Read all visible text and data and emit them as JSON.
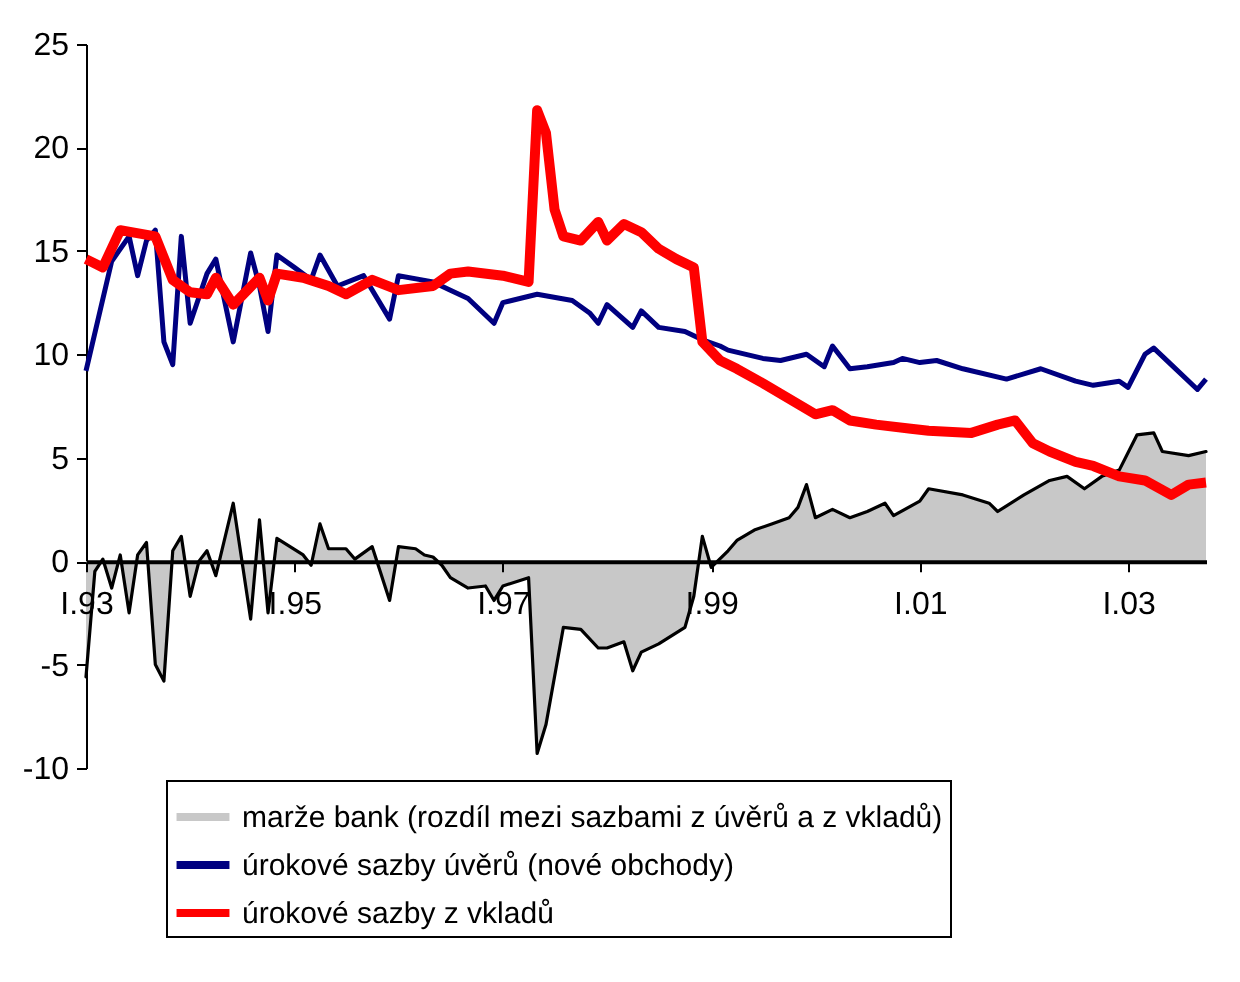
{
  "chart_data": {
    "type": "line",
    "xlim": [
      "1993-01",
      "2003-10"
    ],
    "xticks": [
      {
        "value": "1993-01",
        "label": "I.93"
      },
      {
        "value": "1995-01",
        "label": "I.95"
      },
      {
        "value": "1997-01",
        "label": "I.97"
      },
      {
        "value": "1999-01",
        "label": "I.99"
      },
      {
        "value": "2001-01",
        "label": "I.01"
      },
      {
        "value": "2003-01",
        "label": "I.03"
      }
    ],
    "ylim": [
      -10,
      25
    ],
    "yticks": [
      -10,
      -5,
      0,
      5,
      10,
      15,
      20,
      25
    ],
    "grid": false,
    "legend": "bottom",
    "series": [
      {
        "name": "marže bank (rozdíl mezi sazbami z úvěrů a z vkladů)",
        "type": "area",
        "color": "#c8c8c8",
        "x": [
          "1993-01",
          "1993-02",
          "1993-03",
          "1993-04",
          "1993-05",
          "1993-06",
          "1993-07",
          "1993-08",
          "1993-09",
          "1993-10",
          "1993-11",
          "1993-12",
          "1994-01",
          "1994-02",
          "1994-03",
          "1994-04",
          "1994-06",
          "1994-08",
          "1994-09",
          "1994-10",
          "1994-11",
          "1995-02",
          "1995-03",
          "1995-04",
          "1995-05",
          "1995-07",
          "1995-08",
          "1995-10",
          "1995-12",
          "1996-01",
          "1996-03",
          "1996-04",
          "1996-05",
          "1996-06",
          "1996-07",
          "1996-09",
          "1996-11",
          "1996-12",
          "1997-01",
          "1997-04",
          "1997-05",
          "1997-06",
          "1997-08",
          "1997-10",
          "1997-12",
          "1998-01",
          "1998-03",
          "1998-04",
          "1998-05",
          "1998-07",
          "1998-10",
          "1998-11",
          "1998-12",
          "1999-01",
          "1999-03",
          "1999-04",
          "1999-06",
          "1999-08",
          "1999-10",
          "1999-11",
          "1999-12",
          "2000-01",
          "2000-03",
          "2000-05",
          "2000-07",
          "2000-09",
          "2000-10",
          "2001-01",
          "2001-02",
          "2001-06",
          "2001-09",
          "2001-10",
          "2002-01",
          "2002-04",
          "2002-06",
          "2002-08",
          "2002-10",
          "2002-12",
          "2003-02",
          "2003-04",
          "2003-05",
          "2003-08",
          "2003-10"
        ],
        "values": [
          -5.6,
          -0.5,
          0.1,
          -1.3,
          0.3,
          -2.5,
          0.3,
          0.9,
          -5.0,
          -5.8,
          0.5,
          1.2,
          -1.7,
          0,
          0.5,
          -0.7,
          2.8,
          -2.8,
          2.0,
          -2.5,
          1.1,
          0.3,
          -0.2,
          1.8,
          0.6,
          0.6,
          0.1,
          0.7,
          -1.9,
          0.7,
          0.6,
          0.3,
          0.2,
          -0.2,
          -0.8,
          -1.3,
          -1.2,
          -1.9,
          -1.2,
          -0.8,
          -9.3,
          -7.9,
          -3.2,
          -3.3,
          -4.2,
          -4.2,
          -3.9,
          -5.3,
          -4.4,
          -4.0,
          -3.2,
          -1.7,
          1.2,
          -0.3,
          0.5,
          1.0,
          1.5,
          1.8,
          2.1,
          2.6,
          3.7,
          2.1,
          2.5,
          2.1,
          2.4,
          2.8,
          2.2,
          2.9,
          3.5,
          3.2,
          2.8,
          2.4,
          3.2,
          3.9,
          4.1,
          3.5,
          4.1,
          4.4,
          6.1,
          6.2,
          5.3,
          5.1,
          5.3
        ]
      },
      {
        "name": "úrokové sazby úvěrů (nové obchody)",
        "type": "line",
        "color": "#000080",
        "x": [
          "1993-01",
          "1993-04",
          "1993-06",
          "1993-07",
          "1993-08",
          "1993-09",
          "1993-10",
          "1993-11",
          "1993-12",
          "1994-01",
          "1994-03",
          "1994-04",
          "1994-06",
          "1994-08",
          "1994-09",
          "1994-10",
          "1994-11",
          "1995-01",
          "1995-03",
          "1995-04",
          "1995-06",
          "1995-09",
          "1995-12",
          "1996-01",
          "1996-05",
          "1996-07",
          "1996-09",
          "1996-12",
          "1997-01",
          "1997-05",
          "1997-09",
          "1997-11",
          "1997-12",
          "1998-01",
          "1998-04",
          "1998-05",
          "1998-07",
          "1998-10",
          "1998-12",
          "1999-02",
          "1999-03",
          "1999-07",
          "1999-09",
          "1999-12",
          "2000-02",
          "2000-03",
          "2000-05",
          "2000-07",
          "2000-10",
          "2000-11",
          "2001-01",
          "2001-03",
          "2001-06",
          "2001-11",
          "2002-03",
          "2002-07",
          "2002-09",
          "2002-12",
          "2003-01",
          "2003-03",
          "2003-04",
          "2003-06",
          "2003-09",
          "2003-10"
        ],
        "values": [
          9.2,
          14.5,
          15.7,
          13.8,
          15.5,
          16.0,
          10.6,
          9.5,
          15.7,
          11.5,
          13.9,
          14.6,
          10.6,
          14.9,
          13.3,
          11.1,
          14.8,
          14.2,
          13.6,
          14.8,
          13.3,
          13.8,
          11.7,
          13.8,
          13.5,
          13.1,
          12.7,
          11.5,
          12.5,
          12.9,
          12.6,
          12.0,
          11.5,
          12.4,
          11.3,
          12.1,
          11.3,
          11.1,
          10.7,
          10.4,
          10.2,
          9.8,
          9.7,
          10.0,
          9.4,
          10.4,
          9.3,
          9.4,
          9.6,
          9.8,
          9.6,
          9.7,
          9.3,
          8.8,
          9.3,
          8.7,
          8.5,
          8.7,
          8.4,
          10.0,
          10.3,
          9.5,
          8.3,
          8.8
        ]
      },
      {
        "name": "úrokové sazby z vkladů",
        "type": "line",
        "color": "#ff0000",
        "x": [
          "1993-01",
          "1993-03",
          "1993-05",
          "1993-09",
          "1993-11",
          "1994-01",
          "1994-03",
          "1994-04",
          "1994-06",
          "1994-09",
          "1994-10",
          "1994-11",
          "1995-02",
          "1995-05",
          "1995-07",
          "1995-10",
          "1996-01",
          "1996-05",
          "1996-07",
          "1996-09",
          "1997-01",
          "1997-04",
          "1997-05",
          "1997-06",
          "1997-07",
          "1997-08",
          "1997-10",
          "1997-12",
          "1998-01",
          "1998-03",
          "1998-05",
          "1998-07",
          "1998-09",
          "1998-11",
          "1998-12",
          "1999-02",
          "1999-04",
          "1999-07",
          "2000-01",
          "2000-03",
          "2000-05",
          "2000-08",
          "2000-12",
          "2001-02",
          "2001-07",
          "2001-10",
          "2001-12",
          "2002-02",
          "2002-04",
          "2002-07",
          "2002-09",
          "2002-12",
          "2003-03",
          "2003-06",
          "2003-08",
          "2003-10"
        ],
        "values": [
          14.6,
          14.2,
          16.0,
          15.7,
          13.6,
          13.0,
          12.9,
          13.7,
          12.4,
          13.7,
          12.6,
          13.9,
          13.7,
          13.3,
          12.9,
          13.6,
          13.1,
          13.3,
          13.9,
          14.0,
          13.8,
          13.5,
          21.8,
          20.7,
          17.0,
          15.7,
          15.5,
          16.4,
          15.5,
          16.3,
          15.9,
          15.1,
          14.6,
          14.2,
          10.6,
          9.7,
          9.3,
          8.6,
          7.1,
          7.3,
          6.8,
          6.6,
          6.4,
          6.3,
          6.2,
          6.6,
          6.8,
          5.7,
          5.3,
          4.8,
          4.6,
          4.1,
          3.9,
          3.2,
          3.7,
          3.8
        ]
      }
    ]
  }
}
